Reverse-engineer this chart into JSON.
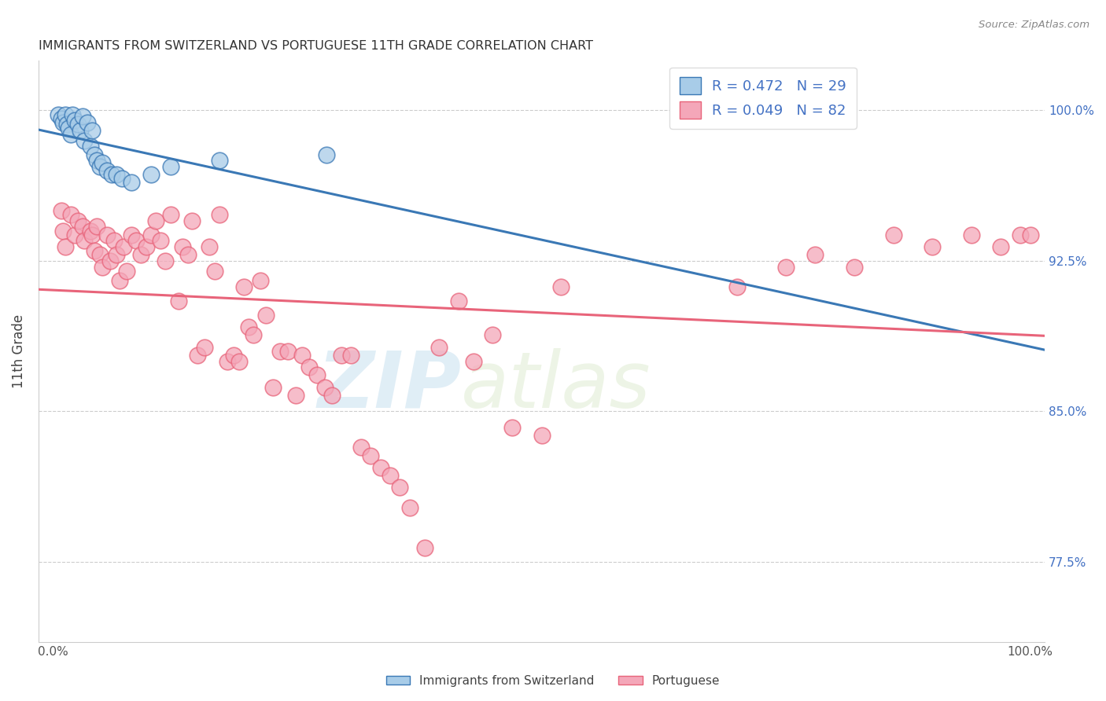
{
  "title": "IMMIGRANTS FROM SWITZERLAND VS PORTUGUESE 11TH GRADE CORRELATION CHART",
  "source": "Source: ZipAtlas.com",
  "ylabel": "11th Grade",
  "legend_blue_label": "Immigrants from Switzerland",
  "legend_pink_label": "Portuguese",
  "R_blue": 0.472,
  "N_blue": 29,
  "R_pink": 0.049,
  "N_pink": 82,
  "blue_color": "#a8cce8",
  "pink_color": "#f4a7b9",
  "blue_line_color": "#3a78b5",
  "pink_line_color": "#e8647a",
  "watermark_zip": "ZIP",
  "watermark_atlas": "atlas",
  "ymin": 0.735,
  "ymax": 1.025,
  "xmin": -0.015,
  "xmax": 1.015,
  "right_yticks": [
    0.775,
    0.85,
    0.925,
    1.0
  ],
  "right_ylabels": [
    "77.5%",
    "85.0%",
    "92.5%",
    "100.0%"
  ],
  "blue_x": [
    0.005,
    0.008,
    0.01,
    0.012,
    0.014,
    0.016,
    0.018,
    0.02,
    0.022,
    0.025,
    0.028,
    0.03,
    0.032,
    0.035,
    0.038,
    0.04,
    0.042,
    0.045,
    0.048,
    0.05,
    0.055,
    0.06,
    0.065,
    0.07,
    0.08,
    0.1,
    0.12,
    0.17,
    0.28
  ],
  "blue_y": [
    0.998,
    0.996,
    0.994,
    0.998,
    0.993,
    0.991,
    0.988,
    0.998,
    0.995,
    0.993,
    0.99,
    0.997,
    0.985,
    0.994,
    0.982,
    0.99,
    0.978,
    0.975,
    0.972,
    0.974,
    0.97,
    0.968,
    0.968,
    0.966,
    0.964,
    0.968,
    0.972,
    0.975,
    0.978
  ],
  "pink_x": [
    0.008,
    0.01,
    0.012,
    0.018,
    0.022,
    0.025,
    0.03,
    0.032,
    0.038,
    0.04,
    0.042,
    0.045,
    0.048,
    0.05,
    0.055,
    0.058,
    0.062,
    0.065,
    0.068,
    0.072,
    0.075,
    0.08,
    0.085,
    0.09,
    0.095,
    0.1,
    0.105,
    0.11,
    0.115,
    0.12,
    0.128,
    0.132,
    0.138,
    0.142,
    0.148,
    0.155,
    0.16,
    0.165,
    0.17,
    0.178,
    0.185,
    0.19,
    0.195,
    0.2,
    0.205,
    0.212,
    0.218,
    0.225,
    0.232,
    0.24,
    0.248,
    0.255,
    0.262,
    0.27,
    0.278,
    0.285,
    0.295,
    0.305,
    0.315,
    0.325,
    0.335,
    0.345,
    0.355,
    0.365,
    0.38,
    0.395,
    0.415,
    0.43,
    0.45,
    0.47,
    0.5,
    0.52,
    0.7,
    0.75,
    0.78,
    0.82,
    0.86,
    0.9,
    0.94,
    0.97,
    0.99,
    1.0
  ],
  "pink_y": [
    0.95,
    0.94,
    0.932,
    0.948,
    0.938,
    0.945,
    0.942,
    0.935,
    0.94,
    0.938,
    0.93,
    0.942,
    0.928,
    0.922,
    0.938,
    0.925,
    0.935,
    0.928,
    0.915,
    0.932,
    0.92,
    0.938,
    0.935,
    0.928,
    0.932,
    0.938,
    0.945,
    0.935,
    0.925,
    0.948,
    0.905,
    0.932,
    0.928,
    0.945,
    0.878,
    0.882,
    0.932,
    0.92,
    0.948,
    0.875,
    0.878,
    0.875,
    0.912,
    0.892,
    0.888,
    0.915,
    0.898,
    0.862,
    0.88,
    0.88,
    0.858,
    0.878,
    0.872,
    0.868,
    0.862,
    0.858,
    0.878,
    0.878,
    0.832,
    0.828,
    0.822,
    0.818,
    0.812,
    0.802,
    0.782,
    0.882,
    0.905,
    0.875,
    0.888,
    0.842,
    0.838,
    0.912,
    0.912,
    0.922,
    0.928,
    0.922,
    0.938,
    0.932,
    0.938,
    0.932,
    0.938,
    0.938
  ]
}
